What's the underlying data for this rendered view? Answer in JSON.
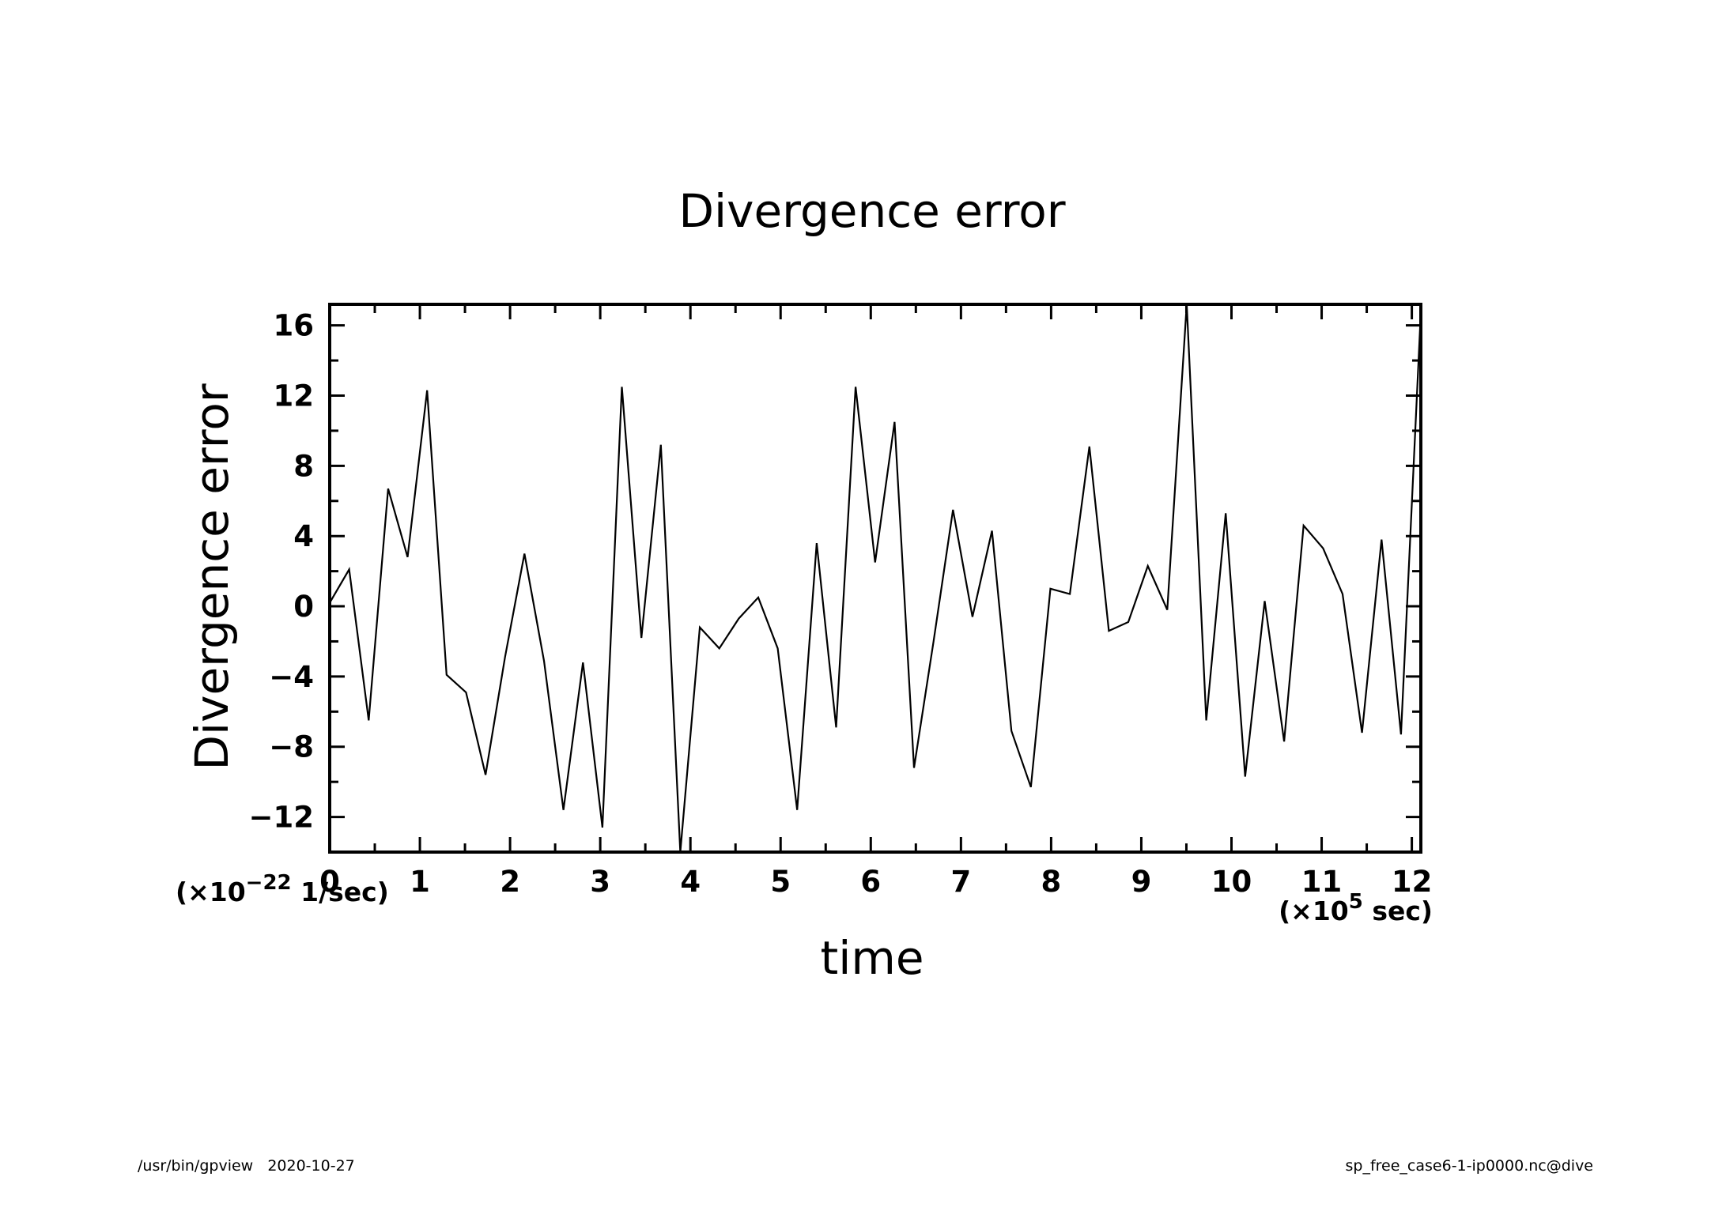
{
  "chart_data": {
    "type": "line",
    "title": "Divergence error",
    "xlabel": "time",
    "ylabel": "Divergence error",
    "x_unit": {
      "prefix": "(×10",
      "exp": "5",
      "suffix": " sec)"
    },
    "y_unit": {
      "prefix": "(×10",
      "exp": "−22",
      "suffix": " 1/sec)"
    },
    "xlim": [
      0,
      12.1
    ],
    "ylim": [
      -14,
      17.2
    ],
    "x_ticks": [
      0,
      1,
      2,
      3,
      4,
      5,
      6,
      7,
      8,
      9,
      10,
      11,
      12
    ],
    "x_tick_labels": [
      "0",
      "1",
      "2",
      "3",
      "4",
      "5",
      "6",
      "7",
      "8",
      "9",
      "10",
      "11",
      "12"
    ],
    "y_ticks": [
      -12,
      -8,
      -4,
      0,
      4,
      8,
      12,
      16
    ],
    "y_tick_labels": [
      "−12",
      "−8",
      "−4",
      "0",
      "4",
      "8",
      "12",
      "16"
    ],
    "grid": false,
    "series": [
      {
        "x": [
          0,
          0.216,
          0.432,
          0.648,
          0.864,
          1.08,
          1.296,
          1.512,
          1.728,
          1.944,
          2.16,
          2.376,
          2.592,
          2.808,
          3.024,
          3.24,
          3.456,
          3.672,
          3.888,
          4.104,
          4.32,
          4.536,
          4.752,
          4.968,
          5.184,
          5.4,
          5.616,
          5.832,
          6.048,
          6.264,
          6.48,
          6.696,
          6.912,
          7.128,
          7.344,
          7.56,
          7.776,
          7.992,
          8.208,
          8.424,
          8.64,
          8.856,
          9.072,
          9.288,
          9.504,
          9.72,
          9.936,
          10.152,
          10.368,
          10.584,
          10.8,
          11.016,
          11.232,
          11.448,
          11.664,
          11.88,
          12.096
        ],
        "y": [
          0.2,
          2.1,
          -6.5,
          6.7,
          2.8,
          12.3,
          -3.9,
          -4.9,
          -9.6,
          -2.9,
          3.0,
          -3.1,
          -11.6,
          -3.2,
          -12.6,
          12.5,
          -1.8,
          9.2,
          -14.0,
          -1.2,
          -2.4,
          -0.7,
          0.5,
          -2.4,
          -11.6,
          3.6,
          -6.9,
          12.5,
          2.5,
          10.5,
          -9.2,
          -2.0,
          5.5,
          -0.6,
          4.3,
          -7.1,
          -10.3,
          1.0,
          0.7,
          9.1,
          -1.4,
          -0.9,
          2.3,
          -0.2,
          17.2,
          -6.5,
          5.3,
          -9.7,
          0.3,
          -7.7,
          4.6,
          3.3,
          0.7,
          -7.2,
          3.8,
          -7.3,
          16.3
        ]
      }
    ]
  },
  "footer": {
    "left": "/usr/bin/gpview   2020-10-27",
    "right": "sp_free_case6-1-ip0000.nc@dive"
  }
}
